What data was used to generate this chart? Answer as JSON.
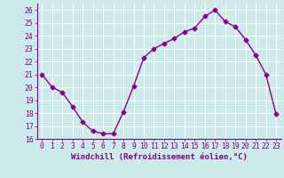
{
  "x": [
    0,
    1,
    2,
    3,
    4,
    5,
    6,
    7,
    8,
    9,
    10,
    11,
    12,
    13,
    14,
    15,
    16,
    17,
    18,
    19,
    20,
    21,
    22,
    23
  ],
  "y": [
    21.0,
    20.0,
    19.6,
    18.5,
    17.3,
    16.6,
    16.4,
    16.4,
    18.1,
    20.1,
    22.3,
    23.0,
    23.4,
    23.8,
    24.3,
    24.6,
    25.5,
    26.0,
    25.1,
    24.7,
    23.7,
    22.5,
    21.0,
    17.9
  ],
  "color": "#8b008b",
  "marker": "D",
  "markersize": 2.5,
  "linewidth": 1.0,
  "xlim": [
    -0.5,
    23.5
  ],
  "ylim": [
    16,
    26.5
  ],
  "yticks": [
    16,
    17,
    18,
    19,
    20,
    21,
    22,
    23,
    24,
    25,
    26
  ],
  "xtick_labels": [
    "0",
    "1",
    "2",
    "3",
    "4",
    "5",
    "6",
    "7",
    "8",
    "9",
    "10",
    "11",
    "12",
    "13",
    "14",
    "15",
    "16",
    "17",
    "18",
    "19",
    "20",
    "21",
    "22",
    "23"
  ],
  "xlabel": "Windchill (Refroidissement éolien,°C)",
  "bg_color": "#cceaea",
  "grid_color": "#ffffff",
  "text_color": "#800080",
  "xlabel_fontsize": 6.5,
  "tick_fontsize": 5.8
}
